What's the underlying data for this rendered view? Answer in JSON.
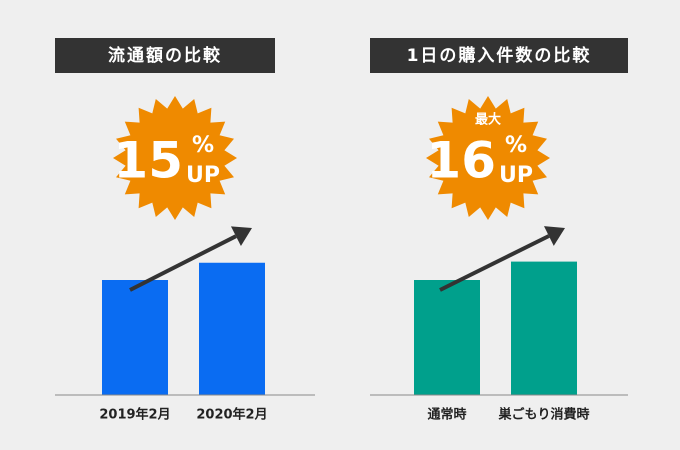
{
  "chart_data": [
    {
      "type": "bar",
      "title": "流通額の比較",
      "categories": [
        "2019年2月",
        "2020年2月"
      ],
      "values": [
        100,
        115
      ],
      "color": "#0a6cf2",
      "ylim": [
        0,
        300
      ],
      "badge": {
        "value": 15,
        "unit": "%",
        "suffix": "UP"
      }
    },
    {
      "type": "bar",
      "title": "1日の購入件数の比較",
      "categories": [
        "通常時",
        "巣ごもり消費時"
      ],
      "values": [
        100,
        116
      ],
      "color": "#00a08c",
      "ylim": [
        0,
        300
      ],
      "badge": {
        "prefix": "最大",
        "value": 16,
        "unit": "%",
        "suffix": "UP"
      }
    }
  ]
}
